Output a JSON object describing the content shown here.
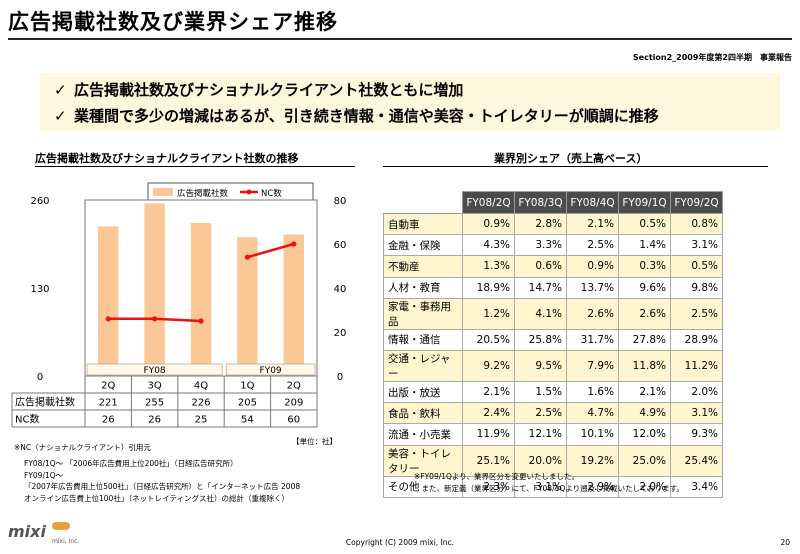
{
  "header": {
    "title": "広告掲載社数及び業界シェア推移",
    "section": "Section2_2009年度第2四半期　事業報告"
  },
  "summary": {
    "check_icon": "check-icon",
    "line1": "広告掲載社数及びナショナルクライアント社数ともに増加",
    "line2": "業種間で多少の増減はあるが、引き続き情報・通信や美容・トイレタリーが順調に推移"
  },
  "left_title": "広告掲載社数及びナショナルクライアント社数の推移",
  "right_title": "業界別シェア（売上高ベース）",
  "chart_data": {
    "type": "bar",
    "categories": [
      "2Q",
      "3Q",
      "4Q",
      "1Q",
      "2Q"
    ],
    "fiscal_groups": [
      "FY08",
      "FY09"
    ],
    "series": [
      {
        "name": "広告掲載社数",
        "values": [
          221,
          255,
          226,
          205,
          209
        ],
        "axis": "left",
        "type": "bar",
        "color": "#f9c896"
      },
      {
        "name": "NC数",
        "values": [
          26,
          26,
          25,
          54,
          60
        ],
        "axis": "right",
        "type": "line",
        "color": "#ee1111"
      }
    ],
    "left_ticks": [
      "0",
      "130",
      "260"
    ],
    "right_ticks": [
      "0",
      "20",
      "40",
      "60",
      "80"
    ],
    "ylim_left": [
      0,
      260
    ],
    "ylim_right": [
      0,
      80
    ],
    "legend_position": "top",
    "table_rows": [
      {
        "label": "広告掲載社数",
        "values": [
          "221",
          "255",
          "226",
          "205",
          "209"
        ]
      },
      {
        "label": "NC数",
        "values": [
          "26",
          "26",
          "25",
          "54",
          "60"
        ]
      }
    ],
    "unit_note": "【単位：社】"
  },
  "notes": {
    "nc": "※NC（ナショナルクライアント）引用元",
    "lines": "FY08/1Q～ 「2006年広告費用上位200社」（日経広告研究所）\nFY09/1Q～\n「2007年広告費用上位500社」（日経広告研究所）と「インターネット広告 2008\nオンライン広告費上位100社」（ネットレイティングス社）の総計（重複除く）"
  },
  "share_table": {
    "headers": [
      "FY08/2Q",
      "FY08/3Q",
      "FY08/4Q",
      "FY09/1Q",
      "FY09/2Q"
    ],
    "rows": [
      {
        "label": "自動車",
        "values": [
          "0.9%",
          "2.8%",
          "2.1%",
          "0.5%",
          "0.8%"
        ]
      },
      {
        "label": "金融・保険",
        "values": [
          "4.3%",
          "3.3%",
          "2.5%",
          "1.4%",
          "3.1%"
        ]
      },
      {
        "label": "不動産",
        "values": [
          "1.3%",
          "0.6%",
          "0.9%",
          "0.3%",
          "0.5%"
        ]
      },
      {
        "label": "人材・教育",
        "values": [
          "18.9%",
          "14.7%",
          "13.7%",
          "9.6%",
          "9.8%"
        ]
      },
      {
        "label": "家電・事務用品",
        "values": [
          "1.2%",
          "4.1%",
          "2.6%",
          "2.6%",
          "2.5%"
        ]
      },
      {
        "label": "情報・通信",
        "values": [
          "20.5%",
          "25.8%",
          "31.7%",
          "27.8%",
          "28.9%"
        ]
      },
      {
        "label": "交通・レジャー",
        "values": [
          "9.2%",
          "9.5%",
          "7.9%",
          "11.8%",
          "11.2%"
        ]
      },
      {
        "label": "出版・放送",
        "values": [
          "2.1%",
          "1.5%",
          "1.6%",
          "2.1%",
          "2.0%"
        ]
      },
      {
        "label": "食品・飲料",
        "values": [
          "2.4%",
          "2.5%",
          "4.7%",
          "4.9%",
          "3.1%"
        ]
      },
      {
        "label": "流通・小売業",
        "values": [
          "11.9%",
          "12.1%",
          "10.1%",
          "12.0%",
          "9.3%"
        ]
      },
      {
        "label": "美容・トイレタリー",
        "values": [
          "25.1%",
          "20.0%",
          "19.2%",
          "25.0%",
          "25.4%"
        ]
      },
      {
        "label": "その他",
        "values": [
          "2.3%",
          "3.1%",
          "2.9%",
          "2.0%",
          "3.4%"
        ]
      }
    ],
    "note": "※FY09/1Qより、業界区分を変更いたしました。\n　また、新定義（業界区分）にて、FY08/1Qより遡及し掲載いたしております。"
  },
  "footer": {
    "copyright": "Copyright (C) 2009 mixi, Inc.",
    "page": "20",
    "logo": "mixi",
    "logo_sub": "mixi, Inc."
  }
}
